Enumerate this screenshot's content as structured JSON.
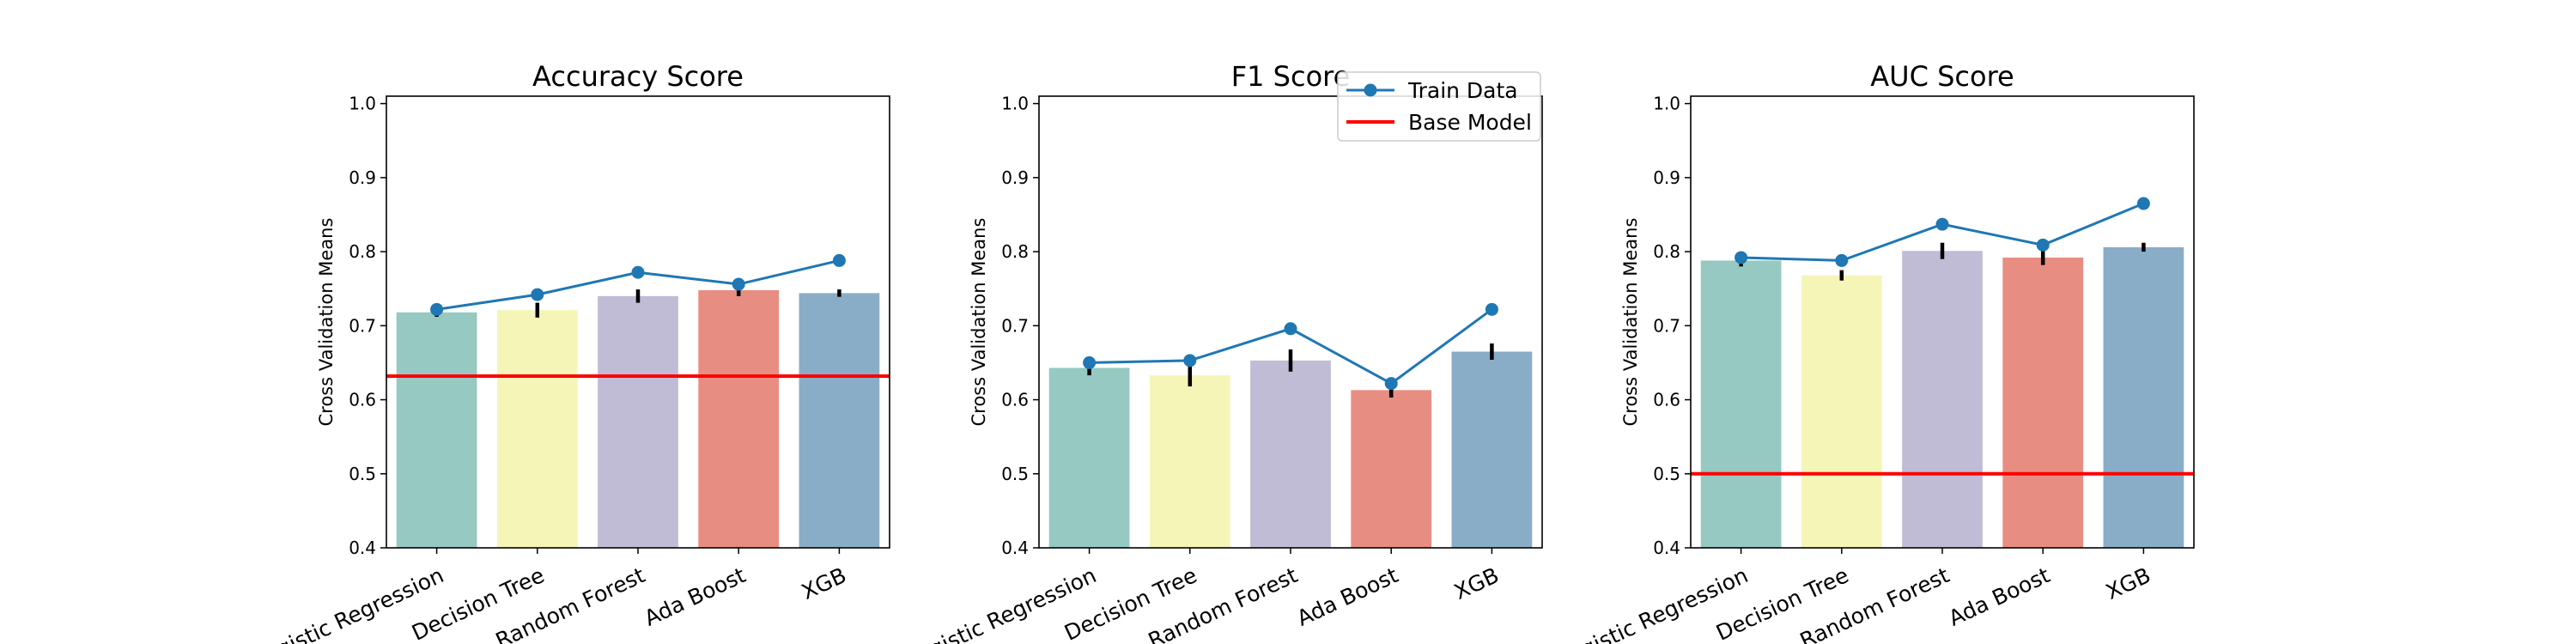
{
  "chart_data": [
    {
      "type": "bar",
      "title": "Accuracy Score",
      "ylabel": "Cross Validation Means",
      "categories": [
        "Logistic Regression",
        "Decision Tree",
        "Random Forest",
        "Ada Boost",
        "XGB"
      ],
      "values": [
        0.718,
        0.721,
        0.74,
        0.748,
        0.744
      ],
      "errors": [
        0.006,
        0.01,
        0.009,
        0.008,
        0.005
      ],
      "train_data": [
        0.722,
        0.742,
        0.772,
        0.756,
        0.788
      ],
      "base_model": 0.632,
      "ylim": [
        0.4,
        1.01
      ],
      "yticks": [
        0.4,
        0.5,
        0.6,
        0.7,
        0.8,
        0.9,
        1.0
      ]
    },
    {
      "type": "bar",
      "title": "F1 Score",
      "ylabel": "Cross Validation Means",
      "categories": [
        "Logistic Regression",
        "Decision Tree",
        "Random Forest",
        "Ada Boost",
        "XGB"
      ],
      "values": [
        0.643,
        0.633,
        0.653,
        0.613,
        0.665
      ],
      "errors": [
        0.01,
        0.015,
        0.015,
        0.01,
        0.011
      ],
      "train_data": [
        0.65,
        0.653,
        0.696,
        0.622,
        0.722
      ],
      "base_model": null,
      "ylim": [
        0.4,
        1.01
      ],
      "yticks": [
        0.4,
        0.5,
        0.6,
        0.7,
        0.8,
        0.9,
        1.0
      ]
    },
    {
      "type": "bar",
      "title": "AUC Score",
      "ylabel": "Cross Validation Means",
      "categories": [
        "Logistic Regression",
        "Decision Tree",
        "Random Forest",
        "Ada Boost",
        "XGB"
      ],
      "values": [
        0.788,
        0.768,
        0.801,
        0.792,
        0.806
      ],
      "errors": [
        0.008,
        0.007,
        0.011,
        0.01,
        0.006
      ],
      "train_data": [
        0.792,
        0.788,
        0.837,
        0.809,
        0.865
      ],
      "base_model": 0.5,
      "ylim": [
        0.4,
        1.01
      ],
      "yticks": [
        0.4,
        0.5,
        0.6,
        0.7,
        0.8,
        0.9,
        1.0
      ]
    }
  ],
  "legend": {
    "entries": [
      "Train Data",
      "Base Model"
    ],
    "placement": "upper-right of F1 Score panel"
  },
  "colors": {
    "bars": [
      "#96c9c2",
      "#f5f5b8",
      "#c0bcd6",
      "#e88d82",
      "#8aadc7"
    ],
    "train_line": "#1f77b4",
    "base_line": "#ff0000",
    "error_bar": "#000000"
  }
}
